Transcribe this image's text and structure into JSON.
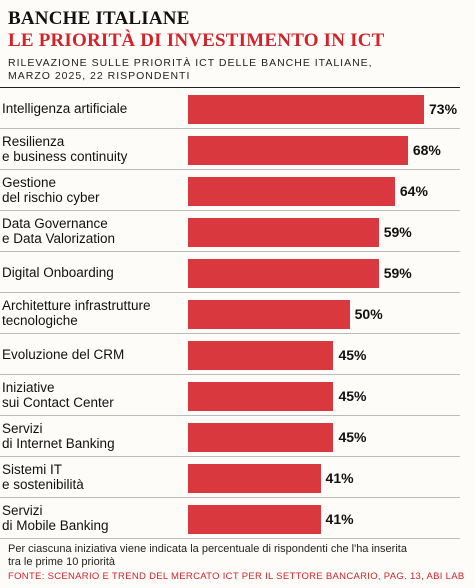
{
  "header": {
    "title": "BANCHE ITALIANE",
    "subtitle_red": "LE PRIORITÀ DI INVESTIMENTO IN ICT",
    "survey": "RILEVAZIONE SULLE PRIORITÀ ICT DELLE BANCHE ITALIANE, MARZO 2025, 22 RISPONDENTI"
  },
  "chart_data": {
    "type": "bar",
    "orientation": "horizontal",
    "categories": [
      "Intelligenza artificiale",
      "Resilienza e business continuity",
      "Gestione del rischio cyber",
      "Data Governance e Data Valorization",
      "Digital Onboarding",
      "Architetture infrastrutture tecnologiche",
      "Evoluzione del CRM",
      "Iniziative sui Contact Center",
      "Servizi di Internet Banking",
      "Sistemi IT e sostenibilità",
      "Servizi di Mobile Banking"
    ],
    "labels": [
      [
        "Intelligenza artificiale"
      ],
      [
        "Resilienza",
        "e business continuity"
      ],
      [
        "Gestione",
        "del rischio cyber"
      ],
      [
        "Data Governance",
        "e Data Valorization"
      ],
      [
        "Digital Onboarding"
      ],
      [
        "Architetture infrastrutture",
        "tecnologiche"
      ],
      [
        "Evoluzione del CRM"
      ],
      [
        "Iniziative",
        "sui Contact Center"
      ],
      [
        "Servizi",
        "di Internet Banking"
      ],
      [
        "Sistemi IT",
        "e sostenibilità"
      ],
      [
        "Servizi",
        "di Mobile Banking"
      ]
    ],
    "values": [
      73,
      68,
      64,
      59,
      59,
      50,
      45,
      45,
      45,
      41,
      41
    ],
    "value_labels": [
      "73%",
      "68%",
      "64%",
      "59%",
      "59%",
      "50%",
      "45%",
      "45%",
      "45%",
      "41%",
      "41%"
    ],
    "unit": "%",
    "xlim": [
      0,
      100
    ],
    "bar_color": "#d9383e"
  },
  "footer": {
    "note": "Per ciascuna iniziativa viene indicata la percentuale di rispondenti che l'ha inserita tra le prime 10 priorità",
    "source": "FONTE: SCENARIO E TREND DEL MERCATO ICT PER IL SETTORE BANCARIO, PAG. 13, ABI LAB"
  }
}
